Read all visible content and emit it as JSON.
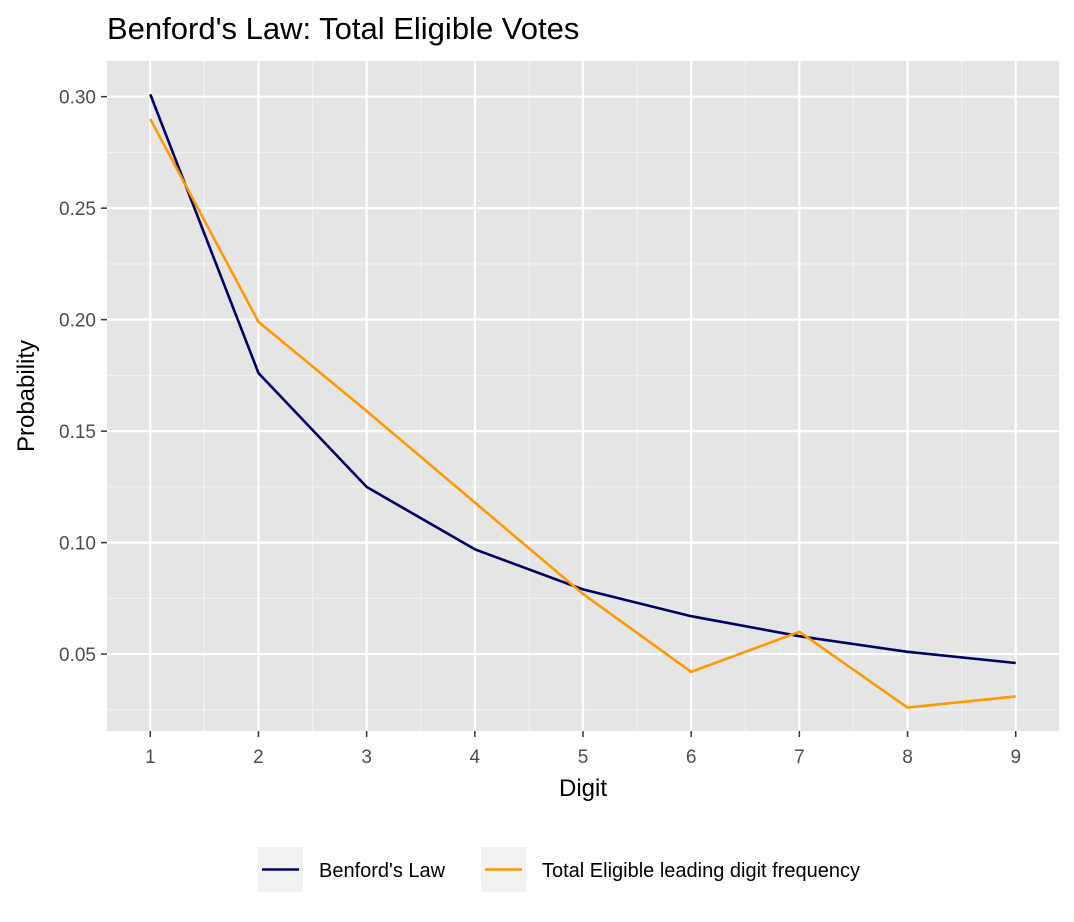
{
  "chart_data": {
    "type": "line",
    "title": "Benford's Law: Total Eligible  Votes",
    "xlabel": "Digit",
    "ylabel": "Probability",
    "x": [
      1,
      2,
      3,
      4,
      5,
      6,
      7,
      8,
      9
    ],
    "x_ticks": [
      "1",
      "2",
      "3",
      "4",
      "5",
      "6",
      "7",
      "8",
      "9"
    ],
    "y_ticks": [
      "0.05",
      "0.10",
      "0.15",
      "0.20",
      "0.25",
      "0.30"
    ],
    "y_tick_values": [
      0.05,
      0.1,
      0.15,
      0.2,
      0.25,
      0.3
    ],
    "xlim": [
      0.6,
      9.4
    ],
    "ylim": [
      0.0155,
      0.316
    ],
    "grid": true,
    "legend_position": "bottom",
    "series": [
      {
        "name": "Benford's Law",
        "color": "#000066",
        "values": [
          0.301,
          0.176,
          0.125,
          0.097,
          0.079,
          0.067,
          0.058,
          0.051,
          0.046
        ]
      },
      {
        "name": "Total Eligible  leading digit frequency",
        "color": "#ff9900",
        "values": [
          0.29,
          0.199,
          0.159,
          0.118,
          0.077,
          0.042,
          0.06,
          0.026,
          0.031
        ]
      }
    ]
  }
}
